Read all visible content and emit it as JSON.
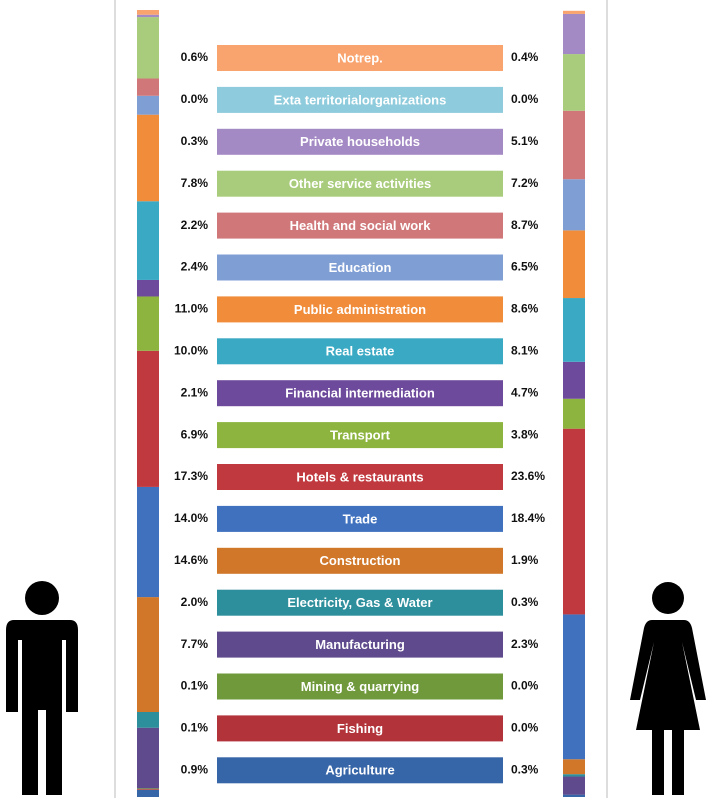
{
  "chart_data": {
    "type": "stacked_bar",
    "categories": [
      "Notrep.",
      "Exta territorialorganizations",
      "Private households",
      "Other service activities",
      "Health and social work",
      "Education",
      "Public administration",
      "Real estate",
      "Financial intermediation",
      "Transport",
      "Hotels & restaurants",
      "Trade",
      "Construction",
      "Electricity, Gas & Water",
      "Manufacturing",
      "Mining & quarrying",
      "Fishing",
      "Agriculture"
    ],
    "colors": [
      "#f9a46e",
      "#8ecbdc",
      "#a48ac4",
      "#a9cc7c",
      "#d0777a",
      "#7f9ed4",
      "#f08c3a",
      "#3aa9c4",
      "#6e4a9c",
      "#8db43f",
      "#c0393f",
      "#3f71bf",
      "#d0772a",
      "#2d8e9c",
      "#5e4a8c",
      "#6f993a",
      "#b2333a",
      "#3665a8"
    ],
    "ylim": [
      0,
      100
    ],
    "series": [
      {
        "values": [
          0.6,
          0.0,
          0.3,
          7.8,
          2.2,
          2.4,
          11.0,
          10.0,
          2.1,
          6.9,
          17.3,
          14.0,
          14.6,
          2.0,
          7.7,
          0.1,
          0.1,
          0.9
        ],
        "value_labels": [
          "0.6%",
          "0.0%",
          "0.3%",
          "7.8%",
          "2.2%",
          "2.4%",
          "11.0%",
          "10.0%",
          "2.1%",
          "6.9%",
          "17.3%",
          "14.0%",
          "14.6%",
          "2.0%",
          "7.7%",
          "0.1%",
          "0.1%",
          "0.9%"
        ]
      },
      {
        "values": [
          0.4,
          0.0,
          5.1,
          7.2,
          8.7,
          6.5,
          8.6,
          8.1,
          4.7,
          3.8,
          23.6,
          18.4,
          1.9,
          0.3,
          2.3,
          0.0,
          0.0,
          0.3
        ],
        "value_labels": [
          "0.4%",
          "0.0%",
          "5.1%",
          "7.2%",
          "8.7%",
          "6.5%",
          "8.6%",
          "8.1%",
          "4.7%",
          "3.8%",
          "23.6%",
          "18.4%",
          "1.9%",
          "0.3%",
          "2.3%",
          "0.0%",
          "0.0%",
          "0.3%"
        ]
      }
    ]
  }
}
